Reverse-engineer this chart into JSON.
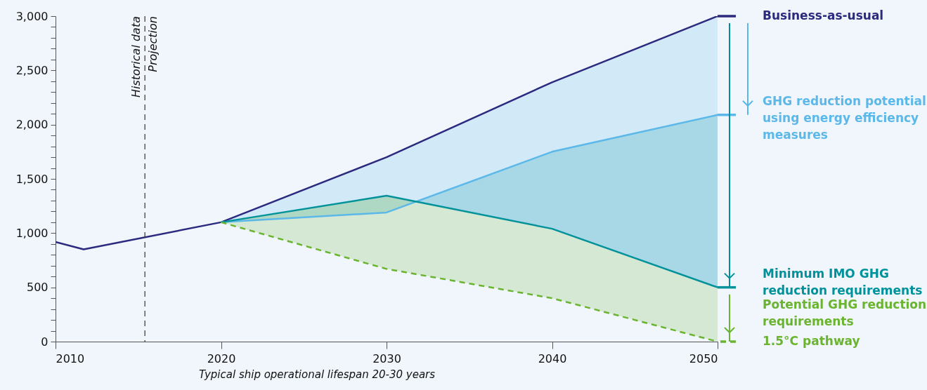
{
  "chart_data": {
    "type": "line",
    "xlim": [
      2010,
      2050
    ],
    "ylim": [
      0,
      3000
    ],
    "xticks": [
      2010,
      2020,
      2030,
      2040,
      2050
    ],
    "yticks": [
      {
        "value": 0,
        "label": "0"
      },
      {
        "value": 100,
        "label": null
      },
      {
        "value": 200,
        "label": null
      },
      {
        "value": 300,
        "label": null
      },
      {
        "value": 400,
        "label": null
      },
      {
        "value": 500,
        "label": "500"
      },
      {
        "value": 600,
        "label": null
      },
      {
        "value": 700,
        "label": null
      },
      {
        "value": 800,
        "label": null
      },
      {
        "value": 900,
        "label": null
      },
      {
        "value": 1000,
        "label": "1,000"
      },
      {
        "value": 1100,
        "label": null
      },
      {
        "value": 1200,
        "label": null
      },
      {
        "value": 1300,
        "label": null
      },
      {
        "value": 1400,
        "label": null
      },
      {
        "value": 1500,
        "label": "1,500"
      },
      {
        "value": 1600,
        "label": null
      },
      {
        "value": 1700,
        "label": null
      },
      {
        "value": 1800,
        "label": null
      },
      {
        "value": 1900,
        "label": null
      },
      {
        "value": 2000,
        "label": "2,000"
      },
      {
        "value": 2100,
        "label": null
      },
      {
        "value": 2200,
        "label": null
      },
      {
        "value": 2300,
        "label": null
      },
      {
        "value": 2400,
        "label": null
      },
      {
        "value": 2500,
        "label": "2,500"
      },
      {
        "value": 2600,
        "label": null
      },
      {
        "value": 2700,
        "label": null
      },
      {
        "value": 2800,
        "label": null
      },
      {
        "value": 2900,
        "label": null
      },
      {
        "value": 3000,
        "label": "3,000"
      }
    ],
    "legend": "right",
    "series": [
      {
        "name": "Business-as-usual",
        "color": "#2b2a7e",
        "x": [
          2010,
          2011.7,
          2020,
          2030,
          2040,
          2050
        ],
        "values": [
          918,
          850,
          1100,
          1700,
          2390,
          3000
        ]
      },
      {
        "name": "GHG reduction potential using energy efficiency measures",
        "color": "#5bb8e8",
        "x": [
          2020,
          2030,
          2040,
          2050
        ],
        "values": [
          1100,
          1190,
          1750,
          2090
        ],
        "upper": [
          1100,
          1700,
          2390,
          3000
        ],
        "lower": [
          1100,
          1345,
          1040,
          500
        ]
      },
      {
        "name": "Minimum IMO GHG reduction requirements",
        "color": "#00929b",
        "x": [
          2020,
          2030,
          2040,
          2050
        ],
        "values": [
          1100,
          1345,
          1040,
          500
        ],
        "upper": [
          1100,
          1190,
          1750,
          2090
        ],
        "lower": [
          1100,
          1345,
          1040,
          500
        ]
      },
      {
        "name": "1.5°C pathway",
        "color": "#6ab42f",
        "line_style": "dashed",
        "x": [
          2020,
          2030,
          2040,
          2050
        ],
        "values": [
          1100,
          670,
          400,
          0
        ],
        "upper": [
          1100,
          1345,
          1040,
          500
        ],
        "lower": [
          1100,
          670,
          400,
          0
        ]
      }
    ],
    "ref_lines": [
      {
        "axis": "x",
        "value": 2015.4,
        "color": "#333333",
        "line_style": "dashed"
      }
    ],
    "annotations": [
      {
        "text": "Historical data",
        "x": 2015.4,
        "y": 3000
      },
      {
        "text": "Projection",
        "x": 2015.4,
        "y": 3000
      },
      "Potential GHG reduction requirements",
      "Typical ship operational lifespan 20-30 years"
    ]
  }
}
